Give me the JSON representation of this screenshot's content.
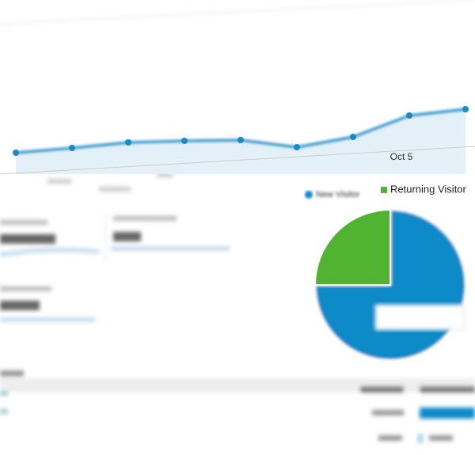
{
  "chart_data": [
    {
      "type": "line",
      "categories": [
        null,
        null,
        null,
        null,
        null,
        null,
        null,
        "Oct 5",
        null
      ],
      "values": [
        22,
        28,
        35,
        37,
        38,
        29,
        42,
        69,
        77
      ],
      "color": "#1a8ac6",
      "area_color": "#e3f0f8",
      "ylim": [
        0,
        175
      ]
    },
    {
      "type": "pie",
      "categories": [
        "New Visitor",
        "Returning Visitor"
      ],
      "values": [
        75,
        25
      ],
      "colors": [
        "#0f8ac8",
        "#50b432"
      ]
    }
  ]
}
